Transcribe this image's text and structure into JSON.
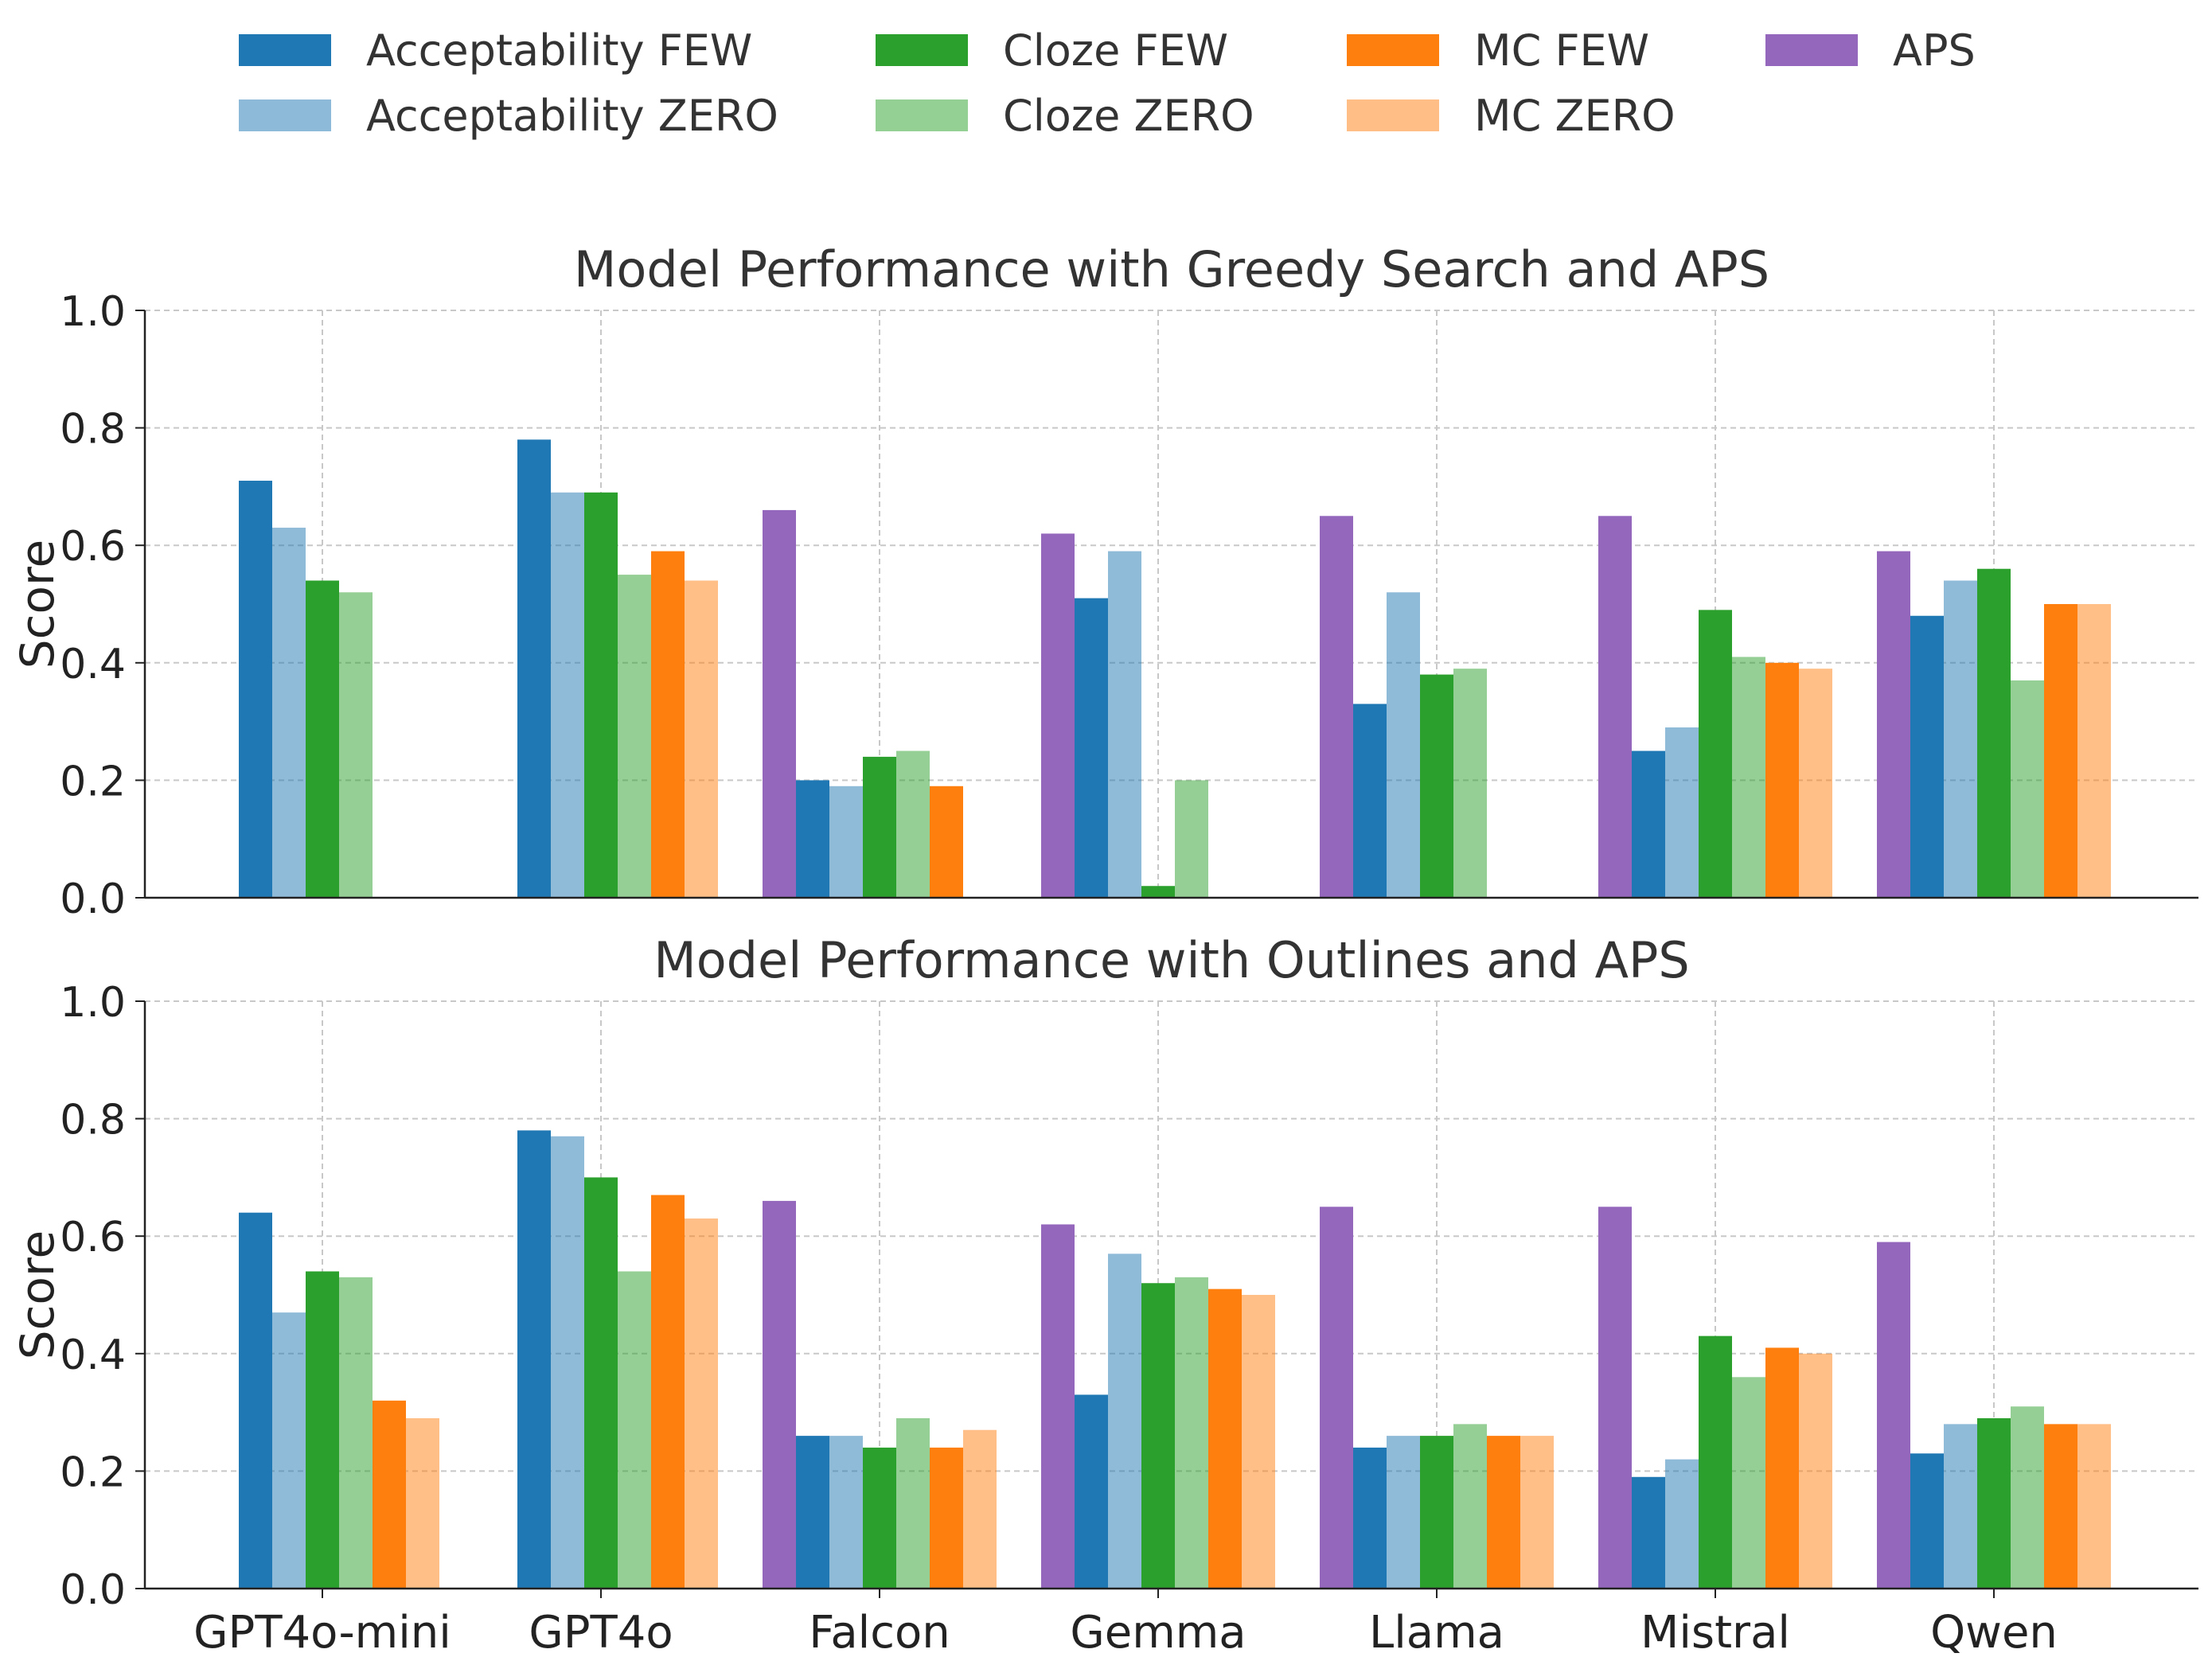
{
  "legend": {
    "placement": "top",
    "items": [
      {
        "key": "acc_few",
        "label": "Acceptability FEW",
        "color": "#1f77b4",
        "alpha": 1.0
      },
      {
        "key": "acc_zero",
        "label": "Acceptability ZERO",
        "color": "#1f77b4",
        "alpha": 0.5
      },
      {
        "key": "cloze_few",
        "label": "Cloze FEW",
        "color": "#2ca02c",
        "alpha": 1.0
      },
      {
        "key": "cloze_zero",
        "label": "Cloze ZERO",
        "color": "#2ca02c",
        "alpha": 0.5
      },
      {
        "key": "mc_few",
        "label": "MC FEW",
        "color": "#ff7f0e",
        "alpha": 1.0
      },
      {
        "key": "mc_zero",
        "label": "MC ZERO",
        "color": "#ff7f0e",
        "alpha": 0.5
      },
      {
        "key": "aps",
        "label": "APS",
        "color": "#9467bd",
        "alpha": 1.0
      }
    ]
  },
  "chart_data": [
    {
      "type": "bar",
      "title": "Model Performance with Greedy Search and APS",
      "xlabel": "",
      "ylabel": "Score",
      "ylim": [
        0,
        1.0
      ],
      "yticks": [
        "0.0",
        "0.2",
        "0.4",
        "0.6",
        "0.8",
        "1.0"
      ],
      "grid": true,
      "show_xticklabels": false,
      "categories": [
        "GPT4o-mini",
        "GPT4o",
        "Falcon",
        "Gemma",
        "Llama",
        "Mistral",
        "Qwen"
      ],
      "series": [
        {
          "key": "aps",
          "name": "APS",
          "values": [
            null,
            null,
            0.66,
            0.62,
            0.65,
            0.65,
            0.59
          ]
        },
        {
          "key": "acc_few",
          "name": "Acceptability FEW",
          "values": [
            0.71,
            0.78,
            0.2,
            0.51,
            0.33,
            0.25,
            0.48
          ]
        },
        {
          "key": "acc_zero",
          "name": "Acceptability ZERO",
          "values": [
            0.63,
            0.69,
            0.19,
            0.59,
            0.52,
            0.29,
            0.54
          ]
        },
        {
          "key": "cloze_few",
          "name": "Cloze FEW",
          "values": [
            0.54,
            0.69,
            0.24,
            0.02,
            0.38,
            0.49,
            0.56
          ]
        },
        {
          "key": "cloze_zero",
          "name": "Cloze ZERO",
          "values": [
            0.52,
            0.55,
            0.25,
            0.2,
            0.39,
            0.41,
            0.37
          ]
        },
        {
          "key": "mc_few",
          "name": "MC FEW",
          "values": [
            null,
            0.59,
            0.19,
            null,
            null,
            0.4,
            0.5
          ]
        },
        {
          "key": "mc_zero",
          "name": "MC ZERO",
          "values": [
            null,
            0.54,
            null,
            null,
            null,
            0.39,
            0.5
          ]
        }
      ]
    },
    {
      "type": "bar",
      "title": "Model Performance with Outlines and APS",
      "xlabel": "",
      "ylabel": "Score",
      "ylim": [
        0,
        1.0
      ],
      "yticks": [
        "0.0",
        "0.2",
        "0.4",
        "0.6",
        "0.8",
        "1.0"
      ],
      "grid": true,
      "show_xticklabels": true,
      "categories": [
        "GPT4o-mini",
        "GPT4o",
        "Falcon",
        "Gemma",
        "Llama",
        "Mistral",
        "Qwen"
      ],
      "series": [
        {
          "key": "aps",
          "name": "APS",
          "values": [
            null,
            null,
            0.66,
            0.62,
            0.65,
            0.65,
            0.59
          ]
        },
        {
          "key": "acc_few",
          "name": "Acceptability FEW",
          "values": [
            0.64,
            0.78,
            0.26,
            0.33,
            0.24,
            0.19,
            0.23
          ]
        },
        {
          "key": "acc_zero",
          "name": "Acceptability ZERO",
          "values": [
            0.47,
            0.77,
            0.26,
            0.57,
            0.26,
            0.22,
            0.28
          ]
        },
        {
          "key": "cloze_few",
          "name": "Cloze FEW",
          "values": [
            0.54,
            0.7,
            0.24,
            0.52,
            0.26,
            0.43,
            0.29
          ]
        },
        {
          "key": "cloze_zero",
          "name": "Cloze ZERO",
          "values": [
            0.53,
            0.54,
            0.29,
            0.53,
            0.28,
            0.36,
            0.31
          ]
        },
        {
          "key": "mc_few",
          "name": "MC FEW",
          "values": [
            0.32,
            0.67,
            0.24,
            0.51,
            0.26,
            0.41,
            0.28
          ]
        },
        {
          "key": "mc_zero",
          "name": "MC ZERO",
          "values": [
            0.29,
            0.63,
            0.27,
            0.5,
            0.26,
            0.4,
            0.28
          ]
        }
      ]
    }
  ]
}
